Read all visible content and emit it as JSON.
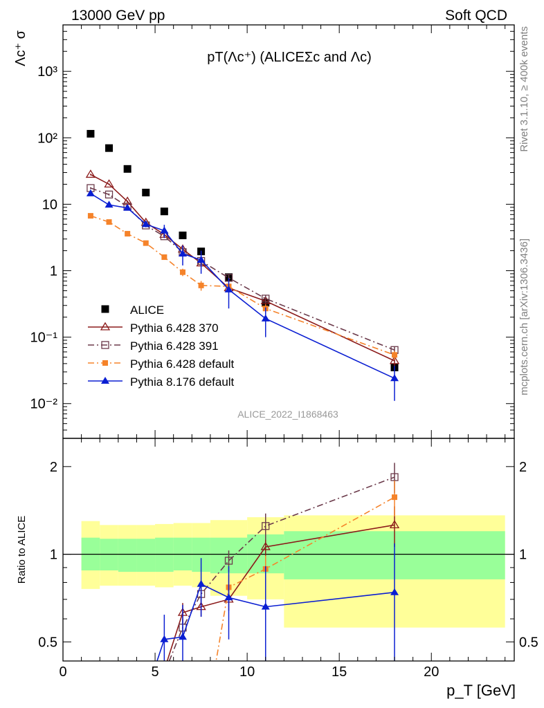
{
  "header": {
    "left": "13000 GeV pp",
    "right": "Soft QCD"
  },
  "side_labels": {
    "top": "Rivet 3.1.10, ≥ 400k events",
    "bottom": "mcplots.cern.ch [arXiv:1306.3436]"
  },
  "watermark": "ALICE_2022_I1868463",
  "main_title": "pT(Λc⁺) (ALICEΣc and Λc)",
  "colors": {
    "alice": "#000000",
    "py370": "#8b1a1a",
    "py391": "#6b3a4a",
    "pydef": "#f5832a",
    "py8": "#0a1ed2",
    "band_inner": "#99ff99",
    "band_outer": "#ffff99"
  },
  "chart_data": [
    {
      "type": "scatter",
      "panel": "main",
      "ylabel": "Λc⁺ σ",
      "yscale": "log",
      "ylim": [
        0.003,
        5000
      ],
      "xlim": [
        0,
        24.5
      ],
      "yticks": [
        "10⁻²",
        "10⁻¹",
        "1",
        "10",
        "10²",
        "10³"
      ],
      "legend_position": "bottom-left",
      "series": [
        {
          "name": "ALICE",
          "key": "alice",
          "marker": "square",
          "line": "none",
          "x": [
            1.5,
            2.5,
            3.5,
            4.5,
            5.5,
            6.5,
            7.5,
            9,
            11,
            18
          ],
          "y": [
            115,
            70,
            34,
            15,
            7.8,
            3.4,
            1.95,
            0.8,
            0.33,
            0.035
          ]
        },
        {
          "name": "Pythia 6.428 370",
          "key": "py370",
          "marker": "triangle-open",
          "line": "solid",
          "x": [
            1.5,
            2.5,
            3.5,
            4.5,
            5.5,
            6.5,
            7.5,
            9,
            11,
            18
          ],
          "y": [
            28,
            20,
            11,
            5.3,
            3.5,
            2.1,
            1.3,
            0.55,
            0.35,
            0.044
          ],
          "err": [
            0.8,
            0.6,
            0.4,
            0.25,
            0.18,
            0.15,
            0.12,
            0.07,
            0.05,
            0.008
          ]
        },
        {
          "name": "Pythia 6.428 391",
          "key": "py391",
          "marker": "square-open",
          "line": "dashdot",
          "x": [
            1.5,
            2.5,
            3.5,
            4.5,
            5.5,
            6.5,
            7.5,
            9,
            11,
            18
          ],
          "y": [
            17.5,
            14,
            9.2,
            4.8,
            3.3,
            1.9,
            1.4,
            0.78,
            0.38,
            0.064
          ],
          "err": [
            0.6,
            0.5,
            0.35,
            0.22,
            0.17,
            0.13,
            0.12,
            0.08,
            0.05,
            0.008
          ]
        },
        {
          "name": "Pythia 6.428 default",
          "key": "pydef",
          "marker": "square-small",
          "line": "dashdot",
          "x": [
            1.5,
            2.5,
            3.5,
            4.5,
            5.5,
            6.5,
            7.5,
            9,
            11,
            18
          ],
          "y": [
            6.7,
            5.4,
            3.6,
            2.6,
            1.6,
            0.95,
            0.6,
            0.58,
            0.27,
            0.054
          ],
          "err": [
            0.3,
            0.25,
            0.18,
            0.15,
            0.12,
            0.12,
            0.1,
            0.06,
            0.04,
            0.008
          ]
        },
        {
          "name": "Pythia 8.176 default",
          "key": "py8",
          "marker": "triangle-filled",
          "line": "solid",
          "x": [
            1.5,
            2.5,
            3.5,
            4.5,
            5.5,
            6.5,
            7.5,
            9,
            11,
            18
          ],
          "y": [
            14.5,
            9.8,
            8.8,
            5.0,
            4.0,
            1.8,
            1.45,
            0.52,
            0.19,
            0.024
          ],
          "err": [
            0.6,
            0.5,
            0.5,
            0.5,
            0.9,
            0.6,
            0.55,
            0.25,
            0.09,
            0.013
          ]
        }
      ]
    },
    {
      "type": "line",
      "panel": "ratio",
      "xlabel": "p_T [GeV]",
      "ylabel": "Ratio to ALICE",
      "yscale": "log",
      "ylim": [
        0.43,
        2.5
      ],
      "xlim": [
        0,
        24.5
      ],
      "xticks": [
        0,
        5,
        10,
        15,
        20
      ],
      "yticks": [
        0.5,
        1,
        2
      ],
      "bands": [
        {
          "x0": 1,
          "x1": 2,
          "inner": [
            0.88,
            1.14
          ],
          "outer": [
            0.76,
            1.3
          ]
        },
        {
          "x0": 2,
          "x1": 3,
          "inner": [
            0.88,
            1.13
          ],
          "outer": [
            0.78,
            1.26
          ]
        },
        {
          "x0": 3,
          "x1": 4,
          "inner": [
            0.87,
            1.13
          ],
          "outer": [
            0.78,
            1.26
          ]
        },
        {
          "x0": 4,
          "x1": 5,
          "inner": [
            0.87,
            1.13
          ],
          "outer": [
            0.78,
            1.26
          ]
        },
        {
          "x0": 5,
          "x1": 6,
          "inner": [
            0.87,
            1.14
          ],
          "outer": [
            0.77,
            1.27
          ]
        },
        {
          "x0": 6,
          "x1": 7,
          "inner": [
            0.88,
            1.14
          ],
          "outer": [
            0.78,
            1.28
          ]
        },
        {
          "x0": 7,
          "x1": 8,
          "inner": [
            0.87,
            1.14
          ],
          "outer": [
            0.77,
            1.28
          ]
        },
        {
          "x0": 8,
          "x1": 10,
          "inner": [
            0.86,
            1.14
          ],
          "outer": [
            0.72,
            1.31
          ]
        },
        {
          "x0": 10,
          "x1": 12,
          "inner": [
            0.86,
            1.17
          ],
          "outer": [
            0.7,
            1.34
          ]
        },
        {
          "x0": 12,
          "x1": 24,
          "inner": [
            0.82,
            1.2
          ],
          "outer": [
            0.56,
            1.36
          ]
        }
      ],
      "series": [
        {
          "name": "Pythia 6.428 370",
          "key": "py370",
          "x": [
            5.5,
            6.5,
            7.5,
            9,
            11,
            18
          ],
          "y": [
            0.4,
            0.63,
            0.66,
            0.7,
            1.06,
            1.26
          ],
          "err": [
            0.03,
            0.05,
            0.05,
            0.06,
            0.12,
            0.2
          ]
        },
        {
          "name": "Pythia 6.428 391",
          "key": "py391",
          "x": [
            5.5,
            6.5,
            7.5,
            9,
            11,
            18
          ],
          "y": [
            0.39,
            0.56,
            0.73,
            0.95,
            1.25,
            1.84
          ],
          "err": [
            0.03,
            0.04,
            0.05,
            0.08,
            0.13,
            0.22
          ]
        },
        {
          "name": "Pythia 6.428 default",
          "key": "pydef",
          "x": [
            8,
            9,
            11,
            18
          ],
          "y": [
            0.33,
            0.77,
            0.89,
            1.57
          ],
          "err": [
            0.05,
            0.08,
            0.1,
            0.22
          ]
        },
        {
          "name": "Pythia 8.176 default",
          "key": "py8",
          "x": [
            4.5,
            5.5,
            6.5,
            7.5,
            9,
            11,
            18
          ],
          "y": [
            0.33,
            0.51,
            0.52,
            0.79,
            0.71,
            0.66,
            0.74
          ],
          "err": [
            0.05,
            0.11,
            0.15,
            0.18,
            0.2,
            0.25,
            0.35
          ]
        }
      ]
    }
  ]
}
